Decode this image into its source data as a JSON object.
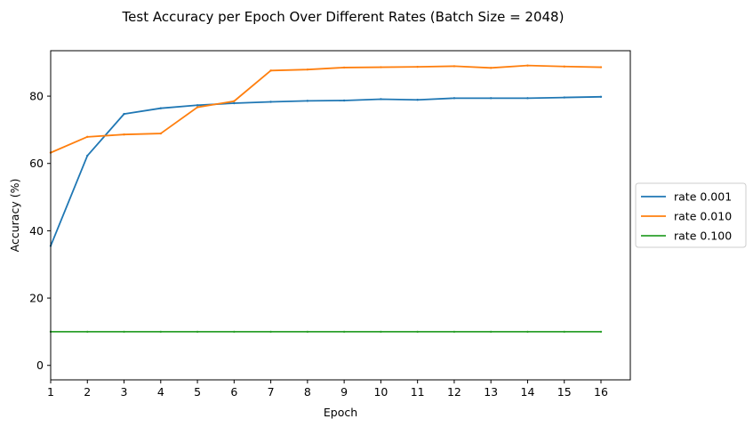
{
  "chart_data": {
    "type": "line",
    "title": "Test Accuracy per Epoch Over Different Rates (Batch Size = 2048)",
    "xlabel": "Epoch",
    "ylabel": "Accuracy (%)",
    "x": [
      1,
      2,
      3,
      4,
      5,
      6,
      7,
      8,
      9,
      10,
      11,
      12,
      13,
      14,
      15,
      16
    ],
    "xlim": [
      1,
      16.8
    ],
    "ylim": [
      -4.3,
      93.5
    ],
    "xticks": [
      1,
      2,
      3,
      4,
      5,
      6,
      7,
      8,
      9,
      10,
      11,
      12,
      13,
      14,
      15,
      16
    ],
    "yticks": [
      0,
      20,
      40,
      60,
      80
    ],
    "grid": false,
    "legend_position": "center-right-outside",
    "series": [
      {
        "name": "rate 0.001",
        "color": "#1f77b4",
        "values": [
          35.5,
          62.3,
          74.7,
          76.4,
          77.3,
          77.9,
          78.3,
          78.6,
          78.7,
          79.1,
          78.9,
          79.4,
          79.4,
          79.4,
          79.6,
          79.8
        ]
      },
      {
        "name": "rate 0.010",
        "color": "#ff7f0e",
        "values": [
          63.2,
          67.9,
          68.6,
          68.9,
          76.7,
          78.5,
          87.6,
          87.9,
          88.5,
          88.6,
          88.7,
          88.9,
          88.4,
          89.1,
          88.8,
          88.6
        ]
      },
      {
        "name": "rate 0.100",
        "color": "#2ca02c",
        "values": [
          10.0,
          10.0,
          10.0,
          10.0,
          10.0,
          10.0,
          10.0,
          10.0,
          10.0,
          10.0,
          10.0,
          10.0,
          10.0,
          10.0,
          10.0,
          10.0
        ]
      }
    ]
  }
}
